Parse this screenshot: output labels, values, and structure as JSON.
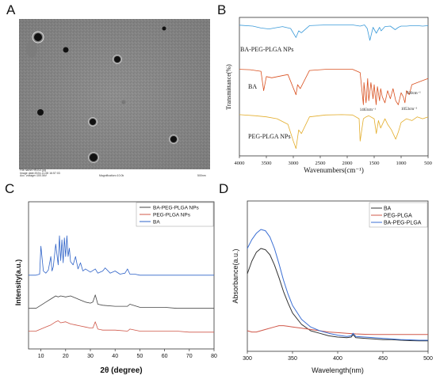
{
  "panels": {
    "a": "A",
    "b": "B",
    "c": "C",
    "d": "D"
  },
  "tem": {
    "footer": [
      "File name:HR202.jpg",
      "Image date:2024-11-08 16:57:03",
      "Acc. voltage=100.0kV",
      "Magnification=10.0k",
      "500nm"
    ]
  },
  "chart_data": [
    {
      "id": "B",
      "type": "line",
      "xlabel": "Wavenumbers(cm⁻¹)",
      "ylabel": "Transmittance(%)",
      "xlim": [
        4000,
        500
      ],
      "xticks": [
        4000,
        3500,
        3000,
        2500,
        2000,
        1500,
        1000,
        500
      ],
      "annotations": [
        "1463cm⁻¹",
        "930cm⁻¹",
        "1053cm⁻¹"
      ],
      "series": [
        {
          "name": "BA-PEG-PLGA NPs",
          "color": "#3a9ad9",
          "x": [
            4000,
            3750,
            3600,
            3450,
            3350,
            3200,
            3050,
            2950,
            2900,
            2850,
            2700,
            2400,
            2100,
            1900,
            1760,
            1680,
            1630,
            1580,
            1520,
            1460,
            1400,
            1370,
            1300,
            1200,
            1110,
            1050,
            1000,
            900,
            800,
            700,
            600,
            500
          ],
          "y": [
            0.94,
            0.9,
            0.82,
            0.78,
            0.82,
            0.88,
            0.8,
            0.42,
            0.7,
            0.62,
            0.92,
            0.95,
            0.95,
            0.95,
            0.9,
            0.95,
            0.8,
            0.3,
            0.85,
            0.6,
            0.85,
            0.7,
            0.88,
            0.9,
            0.75,
            0.85,
            0.9,
            0.9,
            0.92,
            0.92,
            0.9,
            0.92
          ]
        },
        {
          "name": "BA",
          "color": "#d9501f",
          "x": [
            4000,
            3800,
            3600,
            3550,
            3500,
            3400,
            3100,
            2950,
            2920,
            2870,
            2700,
            2400,
            2100,
            1900,
            1760,
            1700,
            1690,
            1650,
            1620,
            1600,
            1560,
            1520,
            1500,
            1463,
            1440,
            1400,
            1380,
            1350,
            1300,
            1250,
            1200,
            1150,
            1100,
            1053,
            1000,
            960,
            930,
            900,
            850,
            800,
            700,
            600,
            500
          ],
          "y": [
            0.93,
            0.92,
            0.88,
            0.4,
            0.75,
            0.72,
            0.8,
            0.3,
            0.55,
            0.45,
            0.9,
            0.93,
            0.93,
            0.93,
            0.85,
            0.05,
            0.6,
            0.1,
            0.7,
            0.15,
            0.6,
            0.2,
            0.55,
            0.05,
            0.5,
            0.15,
            0.45,
            0.25,
            0.1,
            0.4,
            0.2,
            0.45,
            0.15,
            0.05,
            0.35,
            0.25,
            0.1,
            0.4,
            0.3,
            0.55,
            0.6,
            0.65,
            0.7
          ]
        },
        {
          "name": "PEG-PLGA NPs",
          "color": "#e3ad2b",
          "x": [
            4000,
            3700,
            3500,
            3300,
            3100,
            3000,
            2950,
            2900,
            2850,
            2700,
            2400,
            2100,
            1900,
            1780,
            1760,
            1700,
            1650,
            1600,
            1500,
            1460,
            1420,
            1380,
            1300,
            1250,
            1180,
            1100,
            1050,
            1000,
            900,
            800,
            700,
            600,
            500
          ],
          "y": [
            0.96,
            0.93,
            0.9,
            0.85,
            0.7,
            0.25,
            0.05,
            0.55,
            0.45,
            0.9,
            0.95,
            0.96,
            0.95,
            0.85,
            0.25,
            0.85,
            0.9,
            0.93,
            0.85,
            0.45,
            0.8,
            0.6,
            0.85,
            0.7,
            0.55,
            0.3,
            0.5,
            0.75,
            0.85,
            0.8,
            0.9,
            0.85,
            0.9
          ]
        }
      ]
    },
    {
      "id": "C",
      "type": "line",
      "xlabel": "2θ (degree)",
      "ylabel": "Intensity(a.u.)",
      "xlim": [
        5,
        80
      ],
      "xticks": [
        10,
        20,
        30,
        40,
        50,
        60,
        70,
        80
      ],
      "legend_position": "top-right",
      "series": [
        {
          "name": "BA-PEG-PLGA NPs",
          "color": "#444444",
          "x": [
            5,
            8,
            10,
            12,
            14,
            16,
            17,
            18,
            20,
            22,
            24,
            26,
            28,
            30,
            31,
            32,
            33,
            35,
            40,
            45,
            46,
            50,
            55,
            60,
            65,
            70,
            75,
            80
          ],
          "y": [
            0.3,
            0.3,
            0.33,
            0.36,
            0.39,
            0.42,
            0.41,
            0.42,
            0.41,
            0.42,
            0.4,
            0.38,
            0.36,
            0.35,
            0.36,
            0.43,
            0.34,
            0.33,
            0.32,
            0.32,
            0.34,
            0.31,
            0.31,
            0.31,
            0.3,
            0.3,
            0.3,
            0.3
          ]
        },
        {
          "name": "PEG-PLGA NPs",
          "color": "#d0584a",
          "x": [
            5,
            8,
            10,
            12,
            14,
            16,
            17,
            18,
            20,
            22,
            24,
            26,
            28,
            30,
            31,
            32,
            33,
            35,
            40,
            45,
            46,
            50,
            55,
            60,
            65,
            70,
            75,
            80
          ],
          "y": [
            0.08,
            0.08,
            0.1,
            0.12,
            0.14,
            0.17,
            0.18,
            0.16,
            0.17,
            0.15,
            0.14,
            0.13,
            0.12,
            0.11,
            0.11,
            0.17,
            0.1,
            0.09,
            0.09,
            0.08,
            0.1,
            0.08,
            0.08,
            0.08,
            0.08,
            0.07,
            0.07,
            0.07
          ]
        },
        {
          "name": "BA",
          "color": "#2f63c8",
          "x": [
            5,
            8,
            9.5,
            10,
            11,
            12,
            13,
            14,
            14.5,
            15,
            16,
            17,
            17.5,
            18,
            18.5,
            19,
            19.5,
            20,
            20.5,
            21,
            21.5,
            22,
            23,
            24,
            25,
            26,
            27,
            28,
            30,
            32,
            33,
            35,
            36,
            38,
            40,
            42,
            44,
            45,
            46,
            48,
            50,
            55,
            60,
            65,
            70,
            75,
            80
          ],
          "y": [
            0.62,
            0.62,
            0.63,
            0.9,
            0.66,
            0.64,
            0.67,
            0.8,
            0.66,
            0.7,
            0.92,
            0.72,
            1.0,
            0.76,
            0.96,
            0.74,
            0.98,
            0.8,
            1.0,
            0.8,
            0.88,
            0.75,
            0.72,
            0.8,
            0.68,
            0.74,
            0.66,
            0.68,
            0.65,
            0.68,
            0.64,
            0.66,
            0.69,
            0.64,
            0.66,
            0.63,
            0.64,
            0.68,
            0.63,
            0.63,
            0.62,
            0.62,
            0.62,
            0.62,
            0.62,
            0.62,
            0.62
          ]
        }
      ]
    },
    {
      "id": "D",
      "type": "line",
      "xlabel": "Wavelength(nm)",
      "ylabel": "Absorbance(a.u.)",
      "xlim": [
        300,
        500
      ],
      "ylim": [
        0,
        1.0
      ],
      "xticks": [
        300,
        350,
        400,
        450,
        500
      ],
      "legend_position": "top-right",
      "series": [
        {
          "name": "BA",
          "color": "#333333",
          "x": [
            300,
            305,
            310,
            315,
            320,
            325,
            330,
            335,
            340,
            345,
            350,
            360,
            370,
            380,
            390,
            400,
            410,
            415,
            417,
            420,
            430,
            440,
            450,
            460,
            470,
            480,
            490,
            500
          ],
          "y": [
            0.55,
            0.65,
            0.72,
            0.75,
            0.74,
            0.7,
            0.62,
            0.52,
            0.41,
            0.32,
            0.24,
            0.15,
            0.1,
            0.08,
            0.06,
            0.05,
            0.045,
            0.05,
            0.07,
            0.045,
            0.04,
            0.035,
            0.03,
            0.03,
            0.025,
            0.022,
            0.02,
            0.02
          ]
        },
        {
          "name": "PEG-PLGA",
          "color": "#d0584a",
          "x": [
            300,
            305,
            310,
            320,
            330,
            335,
            340,
            345,
            350,
            360,
            370,
            380,
            390,
            400,
            410,
            420,
            430,
            440,
            450,
            460,
            470,
            480,
            490,
            500
          ],
          "y": [
            0.1,
            0.09,
            0.09,
            0.11,
            0.13,
            0.14,
            0.14,
            0.135,
            0.13,
            0.12,
            0.11,
            0.1,
            0.09,
            0.085,
            0.08,
            0.075,
            0.072,
            0.07,
            0.07,
            0.07,
            0.07,
            0.07,
            0.07,
            0.07
          ]
        },
        {
          "name": "BA-PEG-PLGA",
          "color": "#3b6fd4",
          "x": [
            300,
            305,
            310,
            315,
            320,
            325,
            330,
            335,
            340,
            345,
            350,
            360,
            370,
            380,
            390,
            400,
            410,
            415,
            417,
            420,
            430,
            440,
            450,
            460,
            470,
            480,
            490,
            500
          ],
          "y": [
            0.75,
            0.82,
            0.87,
            0.9,
            0.89,
            0.84,
            0.75,
            0.63,
            0.5,
            0.39,
            0.3,
            0.19,
            0.13,
            0.1,
            0.08,
            0.065,
            0.055,
            0.06,
            0.08,
            0.055,
            0.05,
            0.045,
            0.04,
            0.035,
            0.03,
            0.028,
            0.025,
            0.025
          ]
        }
      ]
    }
  ]
}
